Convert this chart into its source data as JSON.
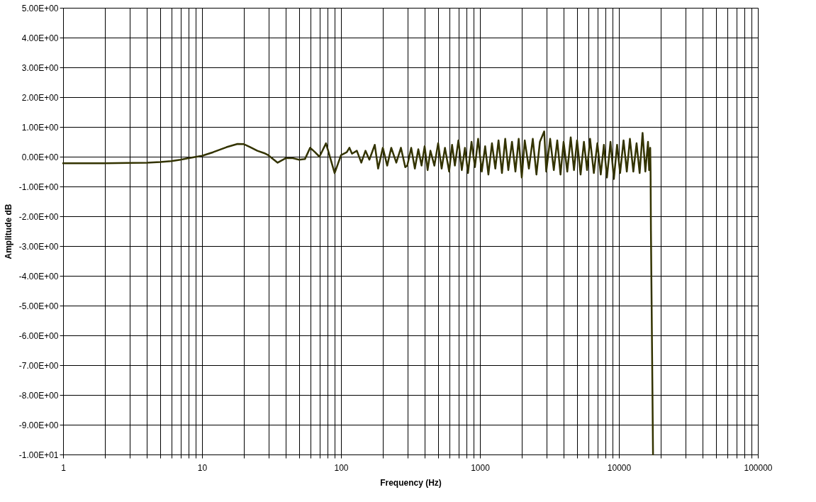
{
  "chart_data": {
    "type": "line",
    "xlabel": "Frequency (Hz)",
    "ylabel": "Amplitude dB",
    "log": "x",
    "grid": true,
    "xlim": [
      1,
      100000
    ],
    "ylim": [
      -10,
      5
    ],
    "xticks": [
      1,
      {
        "value": 2,
        "label": null
      },
      {
        "value": 3,
        "label": null
      },
      {
        "value": 4,
        "label": null
      },
      {
        "value": 5,
        "label": null
      },
      {
        "value": 6,
        "label": null
      },
      {
        "value": 7,
        "label": null
      },
      {
        "value": 8,
        "label": null
      },
      {
        "value": 9,
        "label": null
      },
      10,
      {
        "value": 20,
        "label": null
      },
      {
        "value": 30,
        "label": null
      },
      {
        "value": 40,
        "label": null
      },
      {
        "value": 50,
        "label": null
      },
      {
        "value": 60,
        "label": null
      },
      {
        "value": 70,
        "label": null
      },
      {
        "value": 80,
        "label": null
      },
      {
        "value": 90,
        "label": null
      },
      100,
      {
        "value": 200,
        "label": null
      },
      {
        "value": 300,
        "label": null
      },
      {
        "value": 400,
        "label": null
      },
      {
        "value": 500,
        "label": null
      },
      {
        "value": 600,
        "label": null
      },
      {
        "value": 700,
        "label": null
      },
      {
        "value": 800,
        "label": null
      },
      {
        "value": 900,
        "label": null
      },
      1000,
      {
        "value": 2000,
        "label": null
      },
      {
        "value": 3000,
        "label": null
      },
      {
        "value": 4000,
        "label": null
      },
      {
        "value": 5000,
        "label": null
      },
      {
        "value": 6000,
        "label": null
      },
      {
        "value": 7000,
        "label": null
      },
      {
        "value": 8000,
        "label": null
      },
      {
        "value": 9000,
        "label": null
      },
      10000,
      {
        "value": 20000,
        "label": null
      },
      {
        "value": 30000,
        "label": null
      },
      {
        "value": 40000,
        "label": null
      },
      {
        "value": 50000,
        "label": null
      },
      {
        "value": 60000,
        "label": null
      },
      {
        "value": 70000,
        "label": null
      },
      {
        "value": 80000,
        "label": null
      },
      {
        "value": 90000,
        "label": null
      },
      100000
    ],
    "yticks": [
      {
        "value": 5,
        "label": "5.00E+00"
      },
      {
        "value": 4,
        "label": "4.00E+00"
      },
      {
        "value": 3,
        "label": "3.00E+00"
      },
      {
        "value": 2,
        "label": "2.00E+00"
      },
      {
        "value": 1,
        "label": "1.00E+00"
      },
      {
        "value": 0,
        "label": "0.00E+00"
      },
      {
        "value": -1,
        "label": "-1.00E+00"
      },
      {
        "value": -2,
        "label": "-2.00E+00"
      },
      {
        "value": -3,
        "label": "-3.00E+00"
      },
      {
        "value": -4,
        "label": "-4.00E+00"
      },
      {
        "value": -5,
        "label": "-5.00E+00"
      },
      {
        "value": -6,
        "label": "-6.00E+00"
      },
      {
        "value": -7,
        "label": "-7.00E+00"
      },
      {
        "value": -8,
        "label": "-8.00E+00"
      },
      {
        "value": -9,
        "label": "-9.00E+00"
      },
      {
        "value": -10,
        "label": "-1.00E+01"
      }
    ],
    "x": [
      1,
      2,
      3,
      4,
      5,
      6,
      7,
      8,
      10,
      12,
      15,
      18,
      20,
      22,
      25,
      28,
      30,
      35,
      40,
      45,
      50,
      55,
      60,
      65,
      70,
      78,
      82,
      90,
      100,
      110,
      115,
      120,
      130,
      140,
      150,
      160,
      175,
      185,
      200,
      215,
      230,
      250,
      270,
      290,
      300,
      320,
      340,
      360,
      380,
      400,
      420,
      440,
      470,
      500,
      530,
      560,
      600,
      630,
      660,
      700,
      740,
      780,
      820,
      870,
      920,
      970,
      1030,
      1090,
      1150,
      1220,
      1290,
      1360,
      1440,
      1520,
      1600,
      1700,
      1800,
      1900,
      2000,
      2100,
      2250,
      2400,
      2550,
      2700,
      2900,
      3000,
      3200,
      3400,
      3600,
      3800,
      4000,
      4250,
      4500,
      4750,
      5000,
      5300,
      5600,
      5900,
      6200,
      6600,
      7000,
      7400,
      7800,
      8200,
      8700,
      9200,
      9700,
      10200,
      10800,
      11400,
      12000,
      12700,
      13400,
      14100,
      14800,
      15500,
      16200,
      16500,
      16800,
      16900,
      17000,
      17200,
      17400,
      17600
    ],
    "series": [
      {
        "color": "#333300",
        "values": [
          -0.22,
          -0.22,
          -0.21,
          -0.2,
          -0.18,
          -0.15,
          -0.1,
          -0.05,
          0.03,
          0.15,
          0.32,
          0.43,
          0.42,
          0.33,
          0.2,
          0.12,
          0.05,
          -0.2,
          -0.05,
          -0.05,
          -0.1,
          -0.08,
          0.3,
          0.15,
          0.0,
          0.45,
          0.1,
          -0.55,
          0.05,
          0.15,
          0.3,
          0.1,
          0.2,
          -0.2,
          0.2,
          -0.1,
          0.4,
          -0.4,
          0.3,
          -0.3,
          0.3,
          -0.2,
          0.3,
          -0.35,
          -0.3,
          0.3,
          -0.4,
          0.25,
          -0.3,
          0.35,
          -0.45,
          0.2,
          -0.3,
          0.45,
          -0.4,
          0.3,
          -0.5,
          0.4,
          -0.3,
          0.55,
          -0.45,
          0.3,
          -0.55,
          0.5,
          -0.35,
          0.6,
          -0.5,
          0.35,
          -0.6,
          0.45,
          -0.4,
          0.55,
          -0.55,
          0.6,
          -0.45,
          0.5,
          -0.5,
          0.6,
          -0.7,
          0.55,
          -0.4,
          0.6,
          -0.6,
          0.5,
          0.85,
          -0.5,
          0.6,
          -0.45,
          0.55,
          -0.6,
          0.5,
          -0.5,
          0.65,
          -0.45,
          0.55,
          -0.6,
          0.5,
          -0.45,
          0.6,
          -0.55,
          0.45,
          -0.6,
          0.4,
          -0.7,
          0.5,
          -0.75,
          0.4,
          -0.55,
          0.55,
          -0.5,
          0.6,
          -0.5,
          0.45,
          -0.55,
          0.8,
          -0.5,
          0.5,
          -0.45,
          0.3,
          -0.5,
          -2.5,
          -5,
          -7.5,
          -10
        ]
      }
    ]
  }
}
